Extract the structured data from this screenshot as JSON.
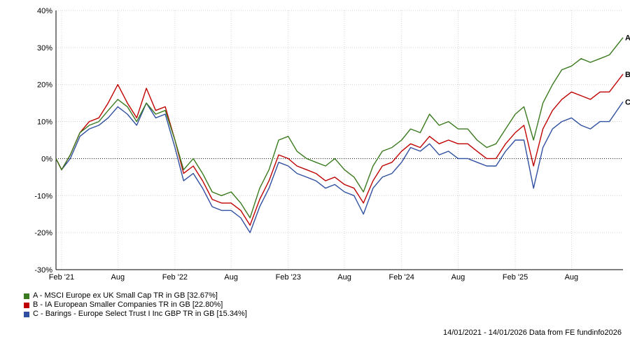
{
  "chart_data": {
    "type": "line",
    "ylim": [
      -30,
      40
    ],
    "y_ticks": [
      40,
      30,
      20,
      10,
      0,
      -10,
      -20,
      -30
    ],
    "y_tick_labels": [
      "40%",
      "30%",
      "20%",
      "10%",
      "0%",
      "-10%",
      "-20%",
      "-30%"
    ],
    "x_range": [
      "2021-01-14",
      "2026-01-14"
    ],
    "x_ticks": [
      {
        "date": "2021-02-01",
        "label": "Feb '21"
      },
      {
        "date": "2021-08-01",
        "label": "Aug"
      },
      {
        "date": "2022-02-01",
        "label": "Feb '22"
      },
      {
        "date": "2022-08-01",
        "label": "Aug"
      },
      {
        "date": "2023-02-01",
        "label": "Feb '23"
      },
      {
        "date": "2023-08-01",
        "label": "Aug"
      },
      {
        "date": "2024-02-01",
        "label": "Feb '24"
      },
      {
        "date": "2024-08-01",
        "label": "Aug"
      },
      {
        "date": "2025-02-01",
        "label": "Feb '25"
      },
      {
        "date": "2025-08-01",
        "label": "Aug"
      }
    ],
    "grid": true,
    "zero_line": "dotted",
    "legend_position": "bottom-left",
    "series": [
      {
        "name": "A - MSCI Europe ex UK Small Cap TR in GB [32.67%]",
        "end_label": "A",
        "color": "#3a7a1e",
        "points": [
          [
            "2021-01-14",
            0
          ],
          [
            "2021-02-01",
            -3
          ],
          [
            "2021-03-01",
            1
          ],
          [
            "2021-04-01",
            7
          ],
          [
            "2021-05-01",
            9
          ],
          [
            "2021-06-01",
            10
          ],
          [
            "2021-07-01",
            13
          ],
          [
            "2021-08-01",
            16
          ],
          [
            "2021-09-01",
            14
          ],
          [
            "2021-10-01",
            10
          ],
          [
            "2021-11-01",
            15
          ],
          [
            "2021-12-01",
            12
          ],
          [
            "2022-01-01",
            13
          ],
          [
            "2022-02-01",
            5
          ],
          [
            "2022-03-01",
            -3
          ],
          [
            "2022-04-01",
            0
          ],
          [
            "2022-05-01",
            -4
          ],
          [
            "2022-06-01",
            -9
          ],
          [
            "2022-07-01",
            -10
          ],
          [
            "2022-08-01",
            -9
          ],
          [
            "2022-09-01",
            -12
          ],
          [
            "2022-10-01",
            -16
          ],
          [
            "2022-11-01",
            -8
          ],
          [
            "2022-12-01",
            -3
          ],
          [
            "2023-01-01",
            5
          ],
          [
            "2023-02-01",
            6
          ],
          [
            "2023-03-01",
            2
          ],
          [
            "2023-04-01",
            0
          ],
          [
            "2023-05-01",
            -1
          ],
          [
            "2023-06-01",
            -2
          ],
          [
            "2023-07-01",
            0
          ],
          [
            "2023-08-01",
            -3
          ],
          [
            "2023-09-01",
            -5
          ],
          [
            "2023-10-01",
            -9
          ],
          [
            "2023-11-01",
            -2
          ],
          [
            "2023-12-01",
            2
          ],
          [
            "2024-01-01",
            3
          ],
          [
            "2024-02-01",
            5
          ],
          [
            "2024-03-01",
            8
          ],
          [
            "2024-04-01",
            7
          ],
          [
            "2024-05-01",
            12
          ],
          [
            "2024-06-01",
            9
          ],
          [
            "2024-07-01",
            10
          ],
          [
            "2024-08-01",
            8
          ],
          [
            "2024-09-01",
            8
          ],
          [
            "2024-10-01",
            5
          ],
          [
            "2024-11-01",
            3
          ],
          [
            "2024-12-01",
            4
          ],
          [
            "2025-01-01",
            8
          ],
          [
            "2025-02-01",
            12
          ],
          [
            "2025-03-01",
            14
          ],
          [
            "2025-04-01",
            5
          ],
          [
            "2025-05-01",
            15
          ],
          [
            "2025-06-01",
            20
          ],
          [
            "2025-07-01",
            24
          ],
          [
            "2025-08-01",
            25
          ],
          [
            "2025-09-01",
            27
          ],
          [
            "2025-10-01",
            26
          ],
          [
            "2025-11-01",
            27
          ],
          [
            "2025-12-01",
            28
          ],
          [
            "2026-01-14",
            32.67
          ]
        ]
      },
      {
        "name": "B - IA European Smaller Companies TR in GB [22.80%]",
        "end_label": "B",
        "color": "#c00000",
        "points": [
          [
            "2021-01-14",
            0
          ],
          [
            "2021-02-01",
            -3
          ],
          [
            "2021-03-01",
            1
          ],
          [
            "2021-04-01",
            7
          ],
          [
            "2021-05-01",
            10
          ],
          [
            "2021-06-01",
            11
          ],
          [
            "2021-07-01",
            15
          ],
          [
            "2021-08-01",
            20
          ],
          [
            "2021-09-01",
            15
          ],
          [
            "2021-10-01",
            11
          ],
          [
            "2021-11-01",
            19
          ],
          [
            "2021-12-01",
            13
          ],
          [
            "2022-01-01",
            14
          ],
          [
            "2022-02-01",
            5
          ],
          [
            "2022-03-01",
            -4
          ],
          [
            "2022-04-01",
            -2
          ],
          [
            "2022-05-01",
            -6
          ],
          [
            "2022-06-01",
            -11
          ],
          [
            "2022-07-01",
            -12
          ],
          [
            "2022-08-01",
            -12
          ],
          [
            "2022-09-01",
            -14
          ],
          [
            "2022-10-01",
            -18
          ],
          [
            "2022-11-01",
            -11
          ],
          [
            "2022-12-01",
            -6
          ],
          [
            "2023-01-01",
            1
          ],
          [
            "2023-02-01",
            0
          ],
          [
            "2023-03-01",
            -2
          ],
          [
            "2023-04-01",
            -3
          ],
          [
            "2023-05-01",
            -4
          ],
          [
            "2023-06-01",
            -6
          ],
          [
            "2023-07-01",
            -5
          ],
          [
            "2023-08-01",
            -7
          ],
          [
            "2023-09-01",
            -8
          ],
          [
            "2023-10-01",
            -12
          ],
          [
            "2023-11-01",
            -6
          ],
          [
            "2023-12-01",
            -2
          ],
          [
            "2024-01-01",
            -1
          ],
          [
            "2024-02-01",
            2
          ],
          [
            "2024-03-01",
            4
          ],
          [
            "2024-04-01",
            3
          ],
          [
            "2024-05-01",
            6
          ],
          [
            "2024-06-01",
            4
          ],
          [
            "2024-07-01",
            5
          ],
          [
            "2024-08-01",
            4
          ],
          [
            "2024-09-01",
            4
          ],
          [
            "2024-10-01",
            2
          ],
          [
            "2024-11-01",
            0
          ],
          [
            "2024-12-01",
            0
          ],
          [
            "2025-01-01",
            4
          ],
          [
            "2025-02-01",
            7
          ],
          [
            "2025-03-01",
            9
          ],
          [
            "2025-04-01",
            -2
          ],
          [
            "2025-05-01",
            8
          ],
          [
            "2025-06-01",
            13
          ],
          [
            "2025-07-01",
            16
          ],
          [
            "2025-08-01",
            18
          ],
          [
            "2025-09-01",
            17
          ],
          [
            "2025-10-01",
            16
          ],
          [
            "2025-11-01",
            18
          ],
          [
            "2025-12-01",
            18
          ],
          [
            "2026-01-14",
            22.8
          ]
        ]
      },
      {
        "name": "C - Barings - Europe Select Trust I Inc GBP TR in GB [15.34%]",
        "end_label": "C",
        "color": "#2f4fa0",
        "points": [
          [
            "2021-01-14",
            0
          ],
          [
            "2021-02-01",
            -3
          ],
          [
            "2021-03-01",
            0
          ],
          [
            "2021-04-01",
            6
          ],
          [
            "2021-05-01",
            8
          ],
          [
            "2021-06-01",
            9
          ],
          [
            "2021-07-01",
            11
          ],
          [
            "2021-08-01",
            14
          ],
          [
            "2021-09-01",
            12
          ],
          [
            "2021-10-01",
            9
          ],
          [
            "2021-11-01",
            15
          ],
          [
            "2021-12-01",
            11
          ],
          [
            "2022-01-01",
            12
          ],
          [
            "2022-02-01",
            3
          ],
          [
            "2022-03-01",
            -6
          ],
          [
            "2022-04-01",
            -4
          ],
          [
            "2022-05-01",
            -8
          ],
          [
            "2022-06-01",
            -13
          ],
          [
            "2022-07-01",
            -14
          ],
          [
            "2022-08-01",
            -14
          ],
          [
            "2022-09-01",
            -16
          ],
          [
            "2022-10-01",
            -20
          ],
          [
            "2022-11-01",
            -13
          ],
          [
            "2022-12-01",
            -8
          ],
          [
            "2023-01-01",
            -1
          ],
          [
            "2023-02-01",
            -2
          ],
          [
            "2023-03-01",
            -4
          ],
          [
            "2023-04-01",
            -5
          ],
          [
            "2023-05-01",
            -6
          ],
          [
            "2023-06-01",
            -8
          ],
          [
            "2023-07-01",
            -7
          ],
          [
            "2023-08-01",
            -9
          ],
          [
            "2023-09-01",
            -10
          ],
          [
            "2023-10-01",
            -15
          ],
          [
            "2023-11-01",
            -8
          ],
          [
            "2023-12-01",
            -5
          ],
          [
            "2024-01-01",
            -4
          ],
          [
            "2024-02-01",
            -1
          ],
          [
            "2024-03-01",
            3
          ],
          [
            "2024-04-01",
            2
          ],
          [
            "2024-05-01",
            4
          ],
          [
            "2024-06-01",
            1
          ],
          [
            "2024-07-01",
            2
          ],
          [
            "2024-08-01",
            0
          ],
          [
            "2024-09-01",
            0
          ],
          [
            "2024-10-01",
            -1
          ],
          [
            "2024-11-01",
            -2
          ],
          [
            "2024-12-01",
            -2
          ],
          [
            "2025-01-01",
            2
          ],
          [
            "2025-02-01",
            5
          ],
          [
            "2025-03-01",
            5
          ],
          [
            "2025-04-01",
            -8
          ],
          [
            "2025-05-01",
            3
          ],
          [
            "2025-06-01",
            8
          ],
          [
            "2025-07-01",
            10
          ],
          [
            "2025-08-01",
            11
          ],
          [
            "2025-09-01",
            9
          ],
          [
            "2025-10-01",
            8
          ],
          [
            "2025-11-01",
            10
          ],
          [
            "2025-12-01",
            10
          ],
          [
            "2026-01-14",
            15.34
          ]
        ]
      }
    ]
  },
  "footer": {
    "date_range": "14/01/2021 - 14/01/2026",
    "source": "Data from FE fundinfo2026"
  }
}
